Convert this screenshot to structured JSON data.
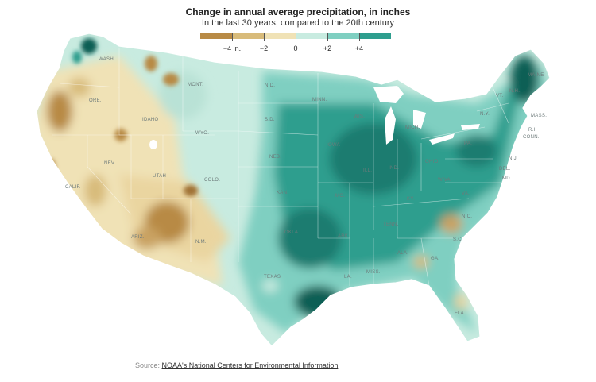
{
  "legend": {
    "title": "Change in annual average precipitation, in inches",
    "subtitle": "In the last 30 years, compared to the 20th century",
    "ticks": [
      "−4 in.",
      "−2",
      "0",
      "+2",
      "+4"
    ],
    "colors": [
      "#7a4b1a",
      "#b88a45",
      "#d8bb7a",
      "#f0e2b6",
      "#c8ebe0",
      "#7fcfc1",
      "#2e9e8e",
      "#0b5e55"
    ]
  },
  "state_labels": {
    "wash": "WASH.",
    "ore": "ORE.",
    "idaho": "IDAHO",
    "mont": "MONT.",
    "wyo": "WYO.",
    "nev": "NEV.",
    "calif": "CALIF.",
    "utah": "UTAH",
    "colo": "COLO.",
    "ariz": "ARIZ.",
    "nm": "N.M.",
    "nd": "N.D.",
    "sd": "S.D.",
    "neb": "NEB.",
    "kan": "KAN.",
    "okla": "OKLA.",
    "texas": "TEXAS",
    "minn": "MINN.",
    "iowa": "IOWA",
    "mo": "MO.",
    "ark": "ARK.",
    "la": "LA.",
    "wis": "WIS.",
    "ill": "ILL.",
    "miss": "MISS.",
    "ala": "ALA.",
    "ga": "GA.",
    "fla": "FLA.",
    "tenn": "TENN.",
    "ky": "KY.",
    "ind": "IND.",
    "ohio": "OHIO",
    "mich": "MICH.",
    "pa": "PA.",
    "ny": "N.Y.",
    "va": "VA.",
    "wva": "W.VA.",
    "nc": "N.C.",
    "sc": "S.C.",
    "md": "MD.",
    "del": "DEL.",
    "nj": "N.J.",
    "conn": "CONN.",
    "ri": "R.I.",
    "mass": "MASS.",
    "vt": "VT.",
    "nh": "N.H.",
    "maine": "MAINE"
  },
  "source": {
    "prefix": "Source: ",
    "link_text": "NOAA's National Centers for Environmental Information"
  }
}
